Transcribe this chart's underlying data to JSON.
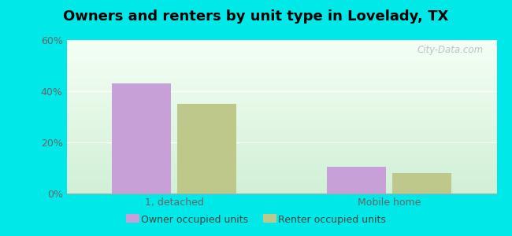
{
  "title": "Owners and renters by unit type in Lovelady, TX",
  "categories": [
    "1, detached",
    "Mobile home"
  ],
  "owner_values": [
    43.0,
    10.5
  ],
  "renter_values": [
    35.0,
    8.0
  ],
  "owner_color": "#c8a0d8",
  "renter_color": "#bec88a",
  "ylim": [
    0,
    60
  ],
  "yticks": [
    0,
    20,
    40,
    60
  ],
  "yticklabels": [
    "0%",
    "20%",
    "40%",
    "60%"
  ],
  "background_outer": "#00e8e8",
  "legend_owner": "Owner occupied units",
  "legend_renter": "Renter occupied units",
  "watermark": "City-Data.com",
  "title_fontsize": 13,
  "tick_fontsize": 9,
  "legend_fontsize": 9
}
